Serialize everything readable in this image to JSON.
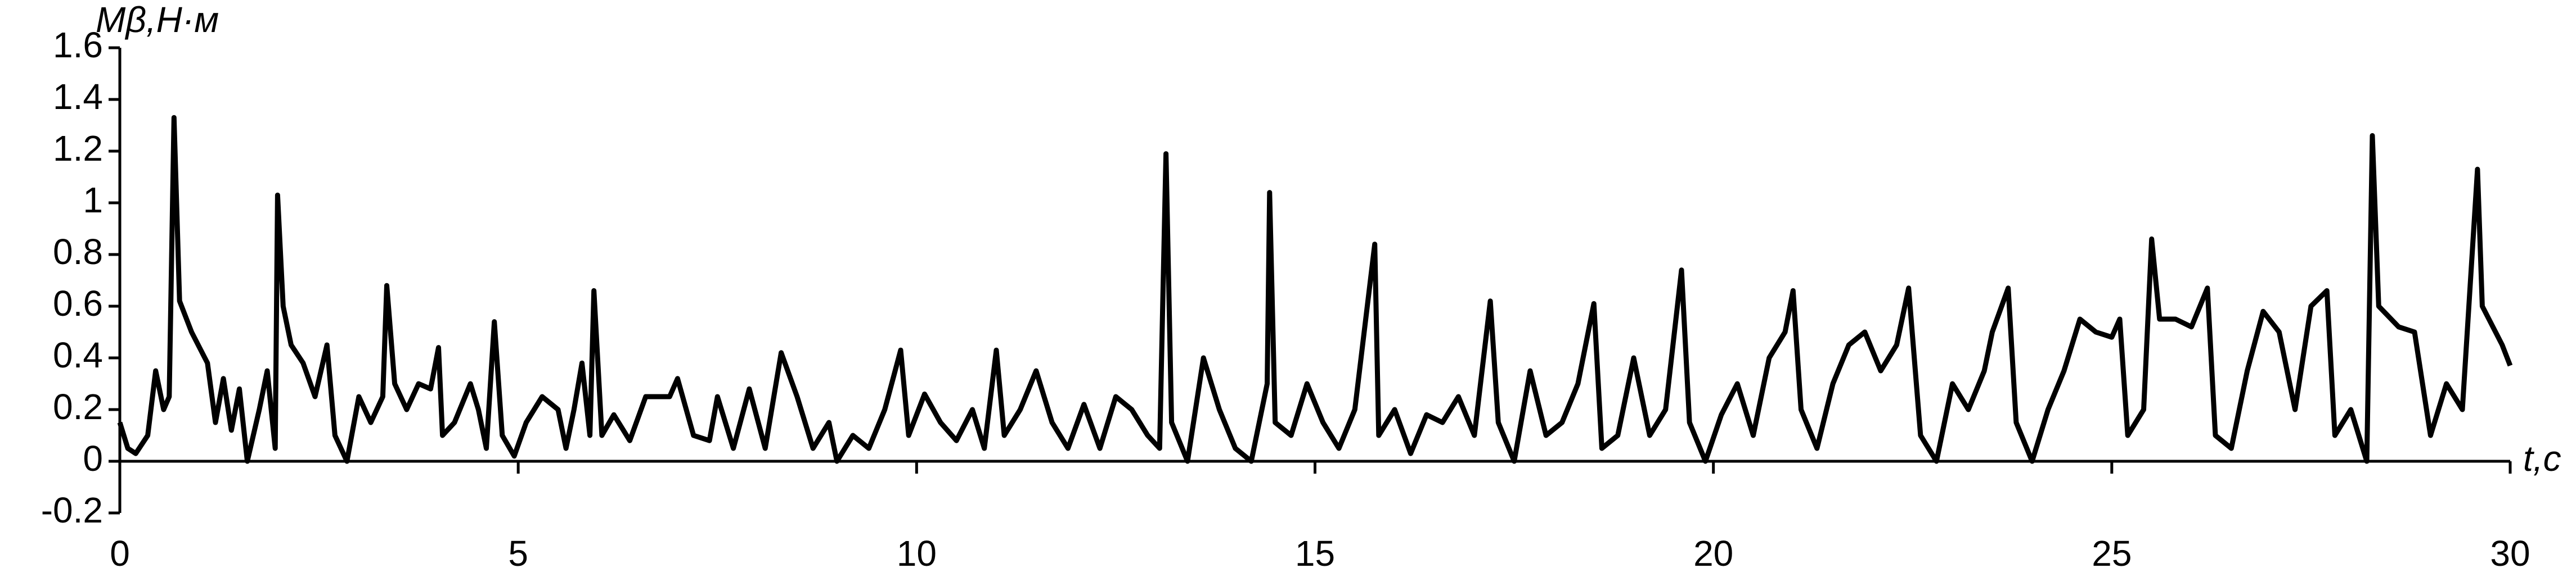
{
  "chart_data": {
    "type": "line",
    "y_label": "Mβ,Н·м",
    "x_label": "t,с",
    "xlim": [
      0,
      30
    ],
    "xticks": [
      0,
      5,
      10,
      15,
      20,
      25,
      30
    ],
    "ylim": [
      -0.2,
      1.6
    ],
    "yticks": [
      -0.2,
      0,
      0.2,
      0.4,
      0.6,
      0.8,
      1,
      1.2,
      1.4,
      1.6
    ],
    "color": "#000000",
    "x": [
      0,
      0.1,
      0.2,
      0.35,
      0.45,
      0.55,
      0.62,
      0.68,
      0.75,
      0.9,
      1.1,
      1.2,
      1.3,
      1.4,
      1.5,
      1.6,
      1.75,
      1.85,
      1.95,
      1.98,
      2.05,
      2.15,
      2.3,
      2.45,
      2.6,
      2.7,
      2.85,
      3,
      3.15,
      3.3,
      3.35,
      3.45,
      3.6,
      3.75,
      3.9,
      4,
      4.05,
      4.2,
      4.4,
      4.5,
      4.6,
      4.7,
      4.8,
      4.95,
      5.1,
      5.3,
      5.5,
      5.6,
      5.7,
      5.8,
      5.9,
      5.95,
      6.05,
      6.2,
      6.4,
      6.6,
      6.9,
      7,
      7.2,
      7.4,
      7.5,
      7.7,
      7.9,
      8.1,
      8.3,
      8.5,
      8.7,
      8.9,
      9,
      9.2,
      9.4,
      9.6,
      9.8,
      9.9,
      10.1,
      10.3,
      10.5,
      10.7,
      10.85,
      11,
      11.1,
      11.3,
      11.5,
      11.7,
      11.9,
      12.1,
      12.3,
      12.5,
      12.7,
      12.9,
      13.05,
      13.13,
      13.2,
      13.4,
      13.6,
      13.8,
      14,
      14.2,
      14.4,
      14.43,
      14.5,
      14.7,
      14.9,
      15.1,
      15.3,
      15.5,
      15.75,
      15.8,
      16,
      16.2,
      16.4,
      16.6,
      16.8,
      17,
      17.2,
      17.3,
      17.5,
      17.7,
      17.9,
      18.1,
      18.3,
      18.5,
      18.6,
      18.8,
      19,
      19.2,
      19.4,
      19.6,
      19.7,
      19.9,
      20.1,
      20.3,
      20.5,
      20.7,
      20.9,
      21,
      21.1,
      21.3,
      21.5,
      21.7,
      21.9,
      22.1,
      22.3,
      22.45,
      22.6,
      22.8,
      23,
      23.2,
      23.4,
      23.5,
      23.7,
      23.8,
      24,
      24.2,
      24.4,
      24.6,
      24.8,
      25,
      25.1,
      25.2,
      25.4,
      25.5,
      25.6,
      25.8,
      26,
      26.2,
      26.3,
      26.5,
      26.7,
      26.9,
      27.1,
      27.3,
      27.5,
      27.7,
      27.8,
      28,
      28.2,
      28.27,
      28.35,
      28.6,
      28.8,
      29,
      29.2,
      29.4,
      29.59,
      29.65,
      29.9,
      30
    ],
    "values": [
      0.15,
      0.05,
      0.03,
      0.1,
      0.35,
      0.2,
      0.25,
      1.33,
      0.62,
      0.5,
      0.38,
      0.15,
      0.32,
      0.12,
      0.28,
      0,
      0.2,
      0.35,
      0.05,
      1.03,
      0.6,
      0.45,
      0.38,
      0.25,
      0.45,
      0.1,
      0,
      0.25,
      0.15,
      0.25,
      0.68,
      0.3,
      0.2,
      0.3,
      0.28,
      0.44,
      0.1,
      0.15,
      0.3,
      0.2,
      0.05,
      0.54,
      0.1,
      0.02,
      0.15,
      0.25,
      0.2,
      0.05,
      0.2,
      0.38,
      0.1,
      0.66,
      0.1,
      0.18,
      0.08,
      0.25,
      0.25,
      0.32,
      0.1,
      0.08,
      0.25,
      0.05,
      0.28,
      0.05,
      0.42,
      0.25,
      0.05,
      0.15,
      0,
      0.1,
      0.05,
      0.2,
      0.43,
      0.1,
      0.26,
      0.15,
      0.08,
      0.2,
      0.05,
      0.43,
      0.1,
      0.2,
      0.35,
      0.15,
      0.05,
      0.22,
      0.05,
      0.25,
      0.2,
      0.1,
      0.05,
      1.19,
      0.15,
      0,
      0.4,
      0.2,
      0.05,
      0,
      0.3,
      1.04,
      0.15,
      0.1,
      0.3,
      0.15,
      0.05,
      0.2,
      0.84,
      0.1,
      0.2,
      0.03,
      0.18,
      0.15,
      0.25,
      0.1,
      0.62,
      0.15,
      0,
      0.35,
      0.1,
      0.15,
      0.3,
      0.61,
      0.05,
      0.1,
      0.4,
      0.1,
      0.2,
      0.74,
      0.15,
      0,
      0.18,
      0.3,
      0.1,
      0.4,
      0.5,
      0.66,
      0.2,
      0.05,
      0.3,
      0.45,
      0.5,
      0.35,
      0.45,
      0.67,
      0.1,
      0,
      0.3,
      0.2,
      0.35,
      0.5,
      0.67,
      0.15,
      0,
      0.2,
      0.35,
      0.55,
      0.5,
      0.48,
      0.55,
      0.1,
      0.2,
      0.86,
      0.55,
      0.55,
      0.52,
      0.67,
      0.1,
      0.05,
      0.35,
      0.58,
      0.5,
      0.2,
      0.6,
      0.66,
      0.1,
      0.2,
      0,
      1.26,
      0.6,
      0.52,
      0.5,
      0.1,
      0.3,
      0.2,
      1.13,
      0.6,
      0.45,
      0.37
    ]
  }
}
